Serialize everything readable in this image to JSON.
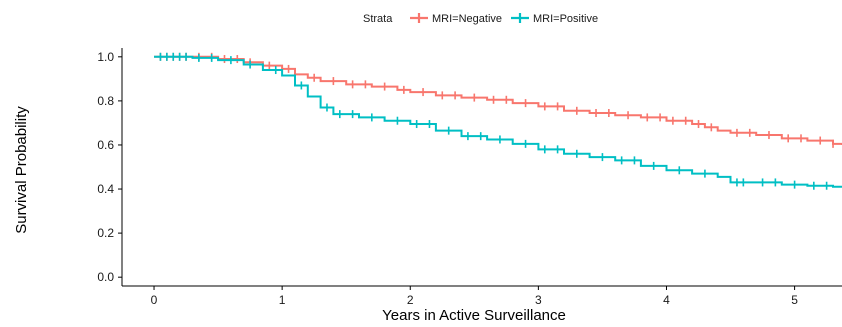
{
  "chart_data": {
    "type": "line",
    "subtype": "kaplan-meier-step",
    "xlabel": "Years in Active Surveillance",
    "ylabel": "Survival Probability",
    "xlim": [
      -0.25,
      5.37
    ],
    "ylim": [
      -0.04,
      1.04
    ],
    "x_ticks": [
      0,
      1,
      2,
      3,
      4,
      5
    ],
    "y_ticks": [
      0.0,
      0.2,
      0.4,
      0.6,
      0.8,
      1.0
    ],
    "y_tick_labels": [
      "0.0",
      "0.2",
      "0.4",
      "0.6",
      "0.8",
      "1.0"
    ],
    "grid": false,
    "legend": {
      "title": "Strata",
      "position": "top",
      "entries": [
        "MRI=Negative",
        "MRI=Positive"
      ]
    },
    "series": [
      {
        "name": "MRI=Negative",
        "color": "#F8766D",
        "points": [
          [
            0,
            1.0
          ],
          [
            0.3,
            1.0
          ],
          [
            0.5,
            0.99
          ],
          [
            0.7,
            0.975
          ],
          [
            0.85,
            0.96
          ],
          [
            1.0,
            0.945
          ],
          [
            1.1,
            0.92
          ],
          [
            1.2,
            0.905
          ],
          [
            1.3,
            0.89
          ],
          [
            1.5,
            0.875
          ],
          [
            1.7,
            0.865
          ],
          [
            1.9,
            0.85
          ],
          [
            2.0,
            0.84
          ],
          [
            2.2,
            0.825
          ],
          [
            2.4,
            0.815
          ],
          [
            2.6,
            0.805
          ],
          [
            2.8,
            0.79
          ],
          [
            3.0,
            0.775
          ],
          [
            3.2,
            0.755
          ],
          [
            3.4,
            0.745
          ],
          [
            3.6,
            0.735
          ],
          [
            3.8,
            0.725
          ],
          [
            4.0,
            0.71
          ],
          [
            4.2,
            0.695
          ],
          [
            4.3,
            0.68
          ],
          [
            4.4,
            0.665
          ],
          [
            4.5,
            0.655
          ],
          [
            4.7,
            0.645
          ],
          [
            4.9,
            0.63
          ],
          [
            5.1,
            0.62
          ],
          [
            5.3,
            0.605
          ],
          [
            5.37,
            0.6
          ]
        ],
        "censor_x": [
          0.05,
          0.1,
          0.15,
          0.2,
          0.25,
          0.35,
          0.45,
          0.55,
          0.65,
          0.75,
          0.9,
          1.05,
          1.25,
          1.4,
          1.55,
          1.65,
          1.8,
          1.95,
          2.1,
          2.25,
          2.35,
          2.5,
          2.65,
          2.75,
          2.9,
          3.05,
          3.15,
          3.3,
          3.45,
          3.55,
          3.7,
          3.85,
          3.95,
          4.05,
          4.15,
          4.25,
          4.35,
          4.55,
          4.65,
          4.8,
          4.95,
          5.05,
          5.2,
          5.3
        ]
      },
      {
        "name": "MRI=Positive",
        "color": "#00BFC4",
        "points": [
          [
            0,
            1.0
          ],
          [
            0.3,
            0.995
          ],
          [
            0.5,
            0.985
          ],
          [
            0.7,
            0.965
          ],
          [
            0.85,
            0.94
          ],
          [
            1.0,
            0.915
          ],
          [
            1.1,
            0.87
          ],
          [
            1.2,
            0.82
          ],
          [
            1.3,
            0.77
          ],
          [
            1.4,
            0.74
          ],
          [
            1.6,
            0.725
          ],
          [
            1.8,
            0.71
          ],
          [
            2.0,
            0.695
          ],
          [
            2.2,
            0.665
          ],
          [
            2.4,
            0.64
          ],
          [
            2.6,
            0.625
          ],
          [
            2.8,
            0.605
          ],
          [
            3.0,
            0.58
          ],
          [
            3.2,
            0.56
          ],
          [
            3.4,
            0.545
          ],
          [
            3.6,
            0.53
          ],
          [
            3.8,
            0.505
          ],
          [
            4.0,
            0.485
          ],
          [
            4.2,
            0.47
          ],
          [
            4.4,
            0.455
          ],
          [
            4.5,
            0.43
          ],
          [
            4.7,
            0.43
          ],
          [
            4.9,
            0.42
          ],
          [
            5.1,
            0.415
          ],
          [
            5.3,
            0.41
          ],
          [
            5.37,
            0.41
          ]
        ],
        "censor_x": [
          0.05,
          0.1,
          0.15,
          0.2,
          0.25,
          0.35,
          0.45,
          0.6,
          0.75,
          0.95,
          1.15,
          1.35,
          1.45,
          1.55,
          1.7,
          1.9,
          2.05,
          2.15,
          2.3,
          2.45,
          2.55,
          2.7,
          2.9,
          3.05,
          3.15,
          3.3,
          3.5,
          3.65,
          3.75,
          3.9,
          4.1,
          4.3,
          4.55,
          4.6,
          4.75,
          4.85,
          5.0,
          5.15,
          5.25
        ]
      }
    ]
  }
}
